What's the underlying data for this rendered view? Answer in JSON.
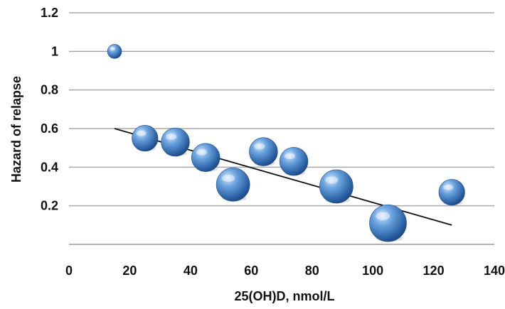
{
  "chart_data": {
    "type": "scatter",
    "xlabel": "25(OH)D, nmol/L",
    "ylabel": "Hazard of relapse",
    "xlim": [
      0,
      140
    ],
    "ylim": [
      0,
      1.2
    ],
    "x_ticks": [
      "0",
      "20",
      "40",
      "60",
      "80",
      "100",
      "120",
      "140"
    ],
    "y_ticks": [
      "0.2",
      "0.4",
      "0.6",
      "0.8",
      "1",
      "1.2"
    ],
    "grid": "horizontal",
    "bubble_color": "#3d7cc4",
    "points": [
      {
        "x": 15,
        "y": 1.0,
        "size": 0.1
      },
      {
        "x": 25,
        "y": 0.55,
        "size": 0.45
      },
      {
        "x": 35,
        "y": 0.53,
        "size": 0.55
      },
      {
        "x": 45,
        "y": 0.45,
        "size": 0.55
      },
      {
        "x": 54,
        "y": 0.31,
        "size": 0.8
      },
      {
        "x": 64,
        "y": 0.48,
        "size": 0.55
      },
      {
        "x": 74,
        "y": 0.43,
        "size": 0.55
      },
      {
        "x": 88,
        "y": 0.3,
        "size": 0.8
      },
      {
        "x": 105,
        "y": 0.11,
        "size": 1.0
      },
      {
        "x": 126,
        "y": 0.27,
        "size": 0.45
      }
    ],
    "trendline": {
      "x": [
        15,
        126
      ],
      "y": [
        0.6,
        0.1
      ]
    }
  }
}
